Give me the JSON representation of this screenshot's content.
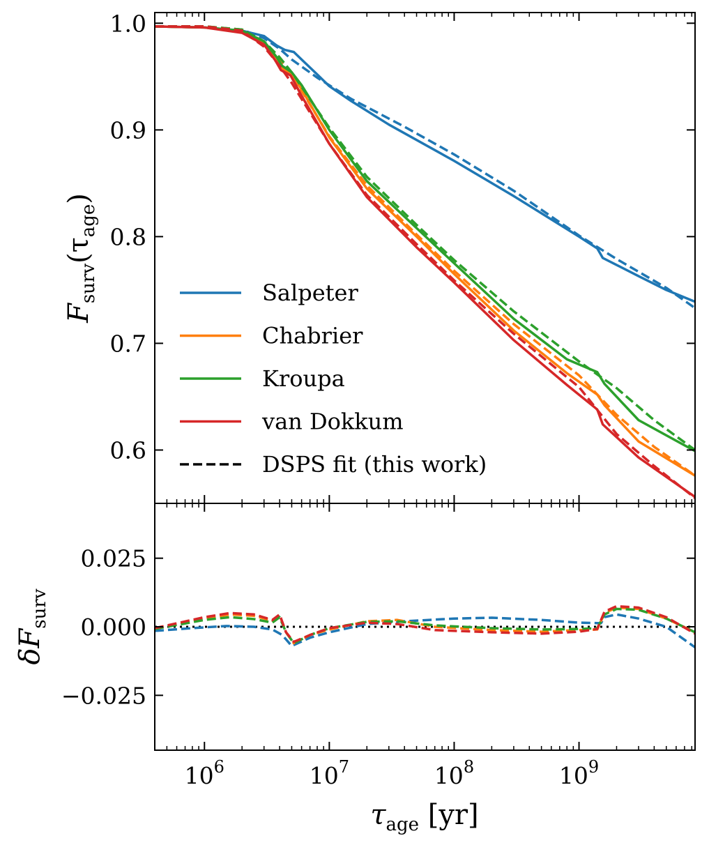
{
  "colors": {
    "Salpeter": "#1f77b4",
    "Chabrier": "#ff7f0e",
    "Kroupa": "#2ca02c",
    "van Dokkum": "#d62728",
    "fit": "#000000"
  },
  "chart_data": [
    {
      "type": "line",
      "panel": "top",
      "ylabel": "F_surv(τ_age)",
      "ylabel_main": "F",
      "ylabel_sub": "surv",
      "ylabel_arg": "(τ",
      "ylabel_arg_sub": "age",
      "ylabel_close": ")",
      "x_scale": "log",
      "xlim": [
        400000,
        8500000000
      ],
      "ylim": [
        0.55,
        1.01
      ],
      "y_ticks": [
        0.6,
        0.7,
        0.8,
        0.9,
        1.0
      ],
      "y_tick_labels": [
        "0.6",
        "0.7",
        "0.8",
        "0.9",
        "1.0"
      ],
      "legend_position": "lower-left",
      "legend": [
        {
          "label": "Salpeter",
          "style": "solid",
          "color_key": "Salpeter"
        },
        {
          "label": "Chabrier",
          "style": "solid",
          "color_key": "Chabrier"
        },
        {
          "label": "Kroupa",
          "style": "solid",
          "color_key": "Kroupa"
        },
        {
          "label": "van Dokkum",
          "style": "solid",
          "color_key": "van Dokkum"
        },
        {
          "label": "DSPS fit (this work)",
          "style": "dashed",
          "color_key": "fit"
        }
      ],
      "series": [
        {
          "name": "Salpeter",
          "style": "solid",
          "points": [
            [
              400000,
              0.997
            ],
            [
              1000000,
              0.996
            ],
            [
              2000000,
              0.993
            ],
            [
              3000000,
              0.988
            ],
            [
              3800000,
              0.979
            ],
            [
              4400000,
              0.975
            ],
            [
              5200000,
              0.973
            ],
            [
              6000000,
              0.966
            ],
            [
              8000000,
              0.952
            ],
            [
              10000000,
              0.941
            ],
            [
              15000000,
              0.927
            ],
            [
              30000000,
              0.905
            ],
            [
              100000000,
              0.871
            ],
            [
              300000000,
              0.838
            ],
            [
              1000000000,
              0.8
            ],
            [
              1400000000,
              0.789
            ],
            [
              1550000000,
              0.78
            ],
            [
              3000000000,
              0.763
            ],
            [
              5000000000,
              0.75
            ],
            [
              8500000000,
              0.739
            ]
          ]
        },
        {
          "name": "Salpeter",
          "style": "dashed",
          "points": [
            [
              400000,
              0.997
            ],
            [
              1000000,
              0.997
            ],
            [
              2000000,
              0.994
            ],
            [
              3000000,
              0.986
            ],
            [
              4000000,
              0.976
            ],
            [
              5000000,
              0.966
            ],
            [
              8000000,
              0.949
            ],
            [
              15000000,
              0.929
            ],
            [
              40000000,
              0.903
            ],
            [
              100000000,
              0.877
            ],
            [
              300000000,
              0.843
            ],
            [
              1000000000,
              0.801
            ],
            [
              2000000000,
              0.779
            ],
            [
              5000000000,
              0.752
            ],
            [
              8500000000,
              0.733
            ]
          ]
        },
        {
          "name": "Chabrier",
          "style": "solid",
          "points": [
            [
              400000,
              0.997
            ],
            [
              1000000,
              0.996
            ],
            [
              2000000,
              0.992
            ],
            [
              3000000,
              0.982
            ],
            [
              3800000,
              0.967
            ],
            [
              4200000,
              0.958
            ],
            [
              5000000,
              0.952
            ],
            [
              6000000,
              0.938
            ],
            [
              10000000,
              0.893
            ],
            [
              20000000,
              0.845
            ],
            [
              50000000,
              0.8
            ],
            [
              100000000,
              0.765
            ],
            [
              300000000,
              0.712
            ],
            [
              800000000,
              0.672
            ],
            [
              1400000000,
              0.652
            ],
            [
              1600000000,
              0.642
            ],
            [
              3000000000,
              0.608
            ],
            [
              8500000000,
              0.576
            ]
          ]
        },
        {
          "name": "Chabrier",
          "style": "dashed",
          "points": [
            [
              400000,
              0.997
            ],
            [
              1000000,
              0.997
            ],
            [
              2000000,
              0.994
            ],
            [
              3000000,
              0.982
            ],
            [
              4000000,
              0.966
            ],
            [
              5000000,
              0.952
            ],
            [
              10000000,
              0.894
            ],
            [
              20000000,
              0.848
            ],
            [
              50000000,
              0.802
            ],
            [
              100000000,
              0.768
            ],
            [
              300000000,
              0.718
            ],
            [
              1000000000,
              0.67
            ],
            [
              2000000000,
              0.633
            ],
            [
              4000000000,
              0.603
            ],
            [
              8500000000,
              0.576
            ]
          ]
        },
        {
          "name": "Kroupa",
          "style": "solid",
          "points": [
            [
              400000,
              0.997
            ],
            [
              1000000,
              0.996
            ],
            [
              2000000,
              0.993
            ],
            [
              3000000,
              0.983
            ],
            [
              3800000,
              0.968
            ],
            [
              4200000,
              0.96
            ],
            [
              5000000,
              0.954
            ],
            [
              6000000,
              0.942
            ],
            [
              10000000,
              0.9
            ],
            [
              20000000,
              0.852
            ],
            [
              50000000,
              0.808
            ],
            [
              100000000,
              0.775
            ],
            [
              300000000,
              0.723
            ],
            [
              800000000,
              0.685
            ],
            [
              1400000000,
              0.673
            ],
            [
              1600000000,
              0.662
            ],
            [
              3000000000,
              0.628
            ],
            [
              8500000000,
              0.599
            ]
          ]
        },
        {
          "name": "Kroupa",
          "style": "dashed",
          "points": [
            [
              400000,
              0.997
            ],
            [
              1000000,
              0.997
            ],
            [
              2000000,
              0.994
            ],
            [
              3000000,
              0.983
            ],
            [
              4000000,
              0.968
            ],
            [
              5000000,
              0.954
            ],
            [
              10000000,
              0.902
            ],
            [
              20000000,
              0.856
            ],
            [
              50000000,
              0.811
            ],
            [
              100000000,
              0.778
            ],
            [
              300000000,
              0.73
            ],
            [
              1000000000,
              0.683
            ],
            [
              2000000000,
              0.658
            ],
            [
              4000000000,
              0.628
            ],
            [
              8500000000,
              0.6
            ]
          ]
        },
        {
          "name": "van Dokkum",
          "style": "solid",
          "points": [
            [
              400000,
              0.997
            ],
            [
              1000000,
              0.996
            ],
            [
              2000000,
              0.991
            ],
            [
              3000000,
              0.98
            ],
            [
              3700000,
              0.965
            ],
            [
              4100000,
              0.956
            ],
            [
              4900000,
              0.951
            ],
            [
              6000000,
              0.932
            ],
            [
              10000000,
              0.887
            ],
            [
              20000000,
              0.837
            ],
            [
              50000000,
              0.79
            ],
            [
              100000000,
              0.757
            ],
            [
              300000000,
              0.703
            ],
            [
              800000000,
              0.661
            ],
            [
              1400000000,
              0.638
            ],
            [
              1550000000,
              0.624
            ],
            [
              3000000000,
              0.593
            ],
            [
              8500000000,
              0.556
            ]
          ]
        },
        {
          "name": "van Dokkum",
          "style": "dashed",
          "points": [
            [
              400000,
              0.997
            ],
            [
              1000000,
              0.997
            ],
            [
              2000000,
              0.993
            ],
            [
              3000000,
              0.978
            ],
            [
              4000000,
              0.96
            ],
            [
              5000000,
              0.944
            ],
            [
              10000000,
              0.887
            ],
            [
              20000000,
              0.839
            ],
            [
              50000000,
              0.793
            ],
            [
              100000000,
              0.759
            ],
            [
              300000000,
              0.709
            ],
            [
              1000000000,
              0.659
            ],
            [
              2000000000,
              0.615
            ],
            [
              4000000000,
              0.585
            ],
            [
              8500000000,
              0.555
            ]
          ]
        }
      ]
    },
    {
      "type": "line",
      "panel": "bottom",
      "ylabel": "δF_surv",
      "ylabel_main": "δF",
      "ylabel_sub": "surv",
      "xlabel": "τ_age [yr]",
      "xlabel_main": "τ",
      "xlabel_sub": "age",
      "xlabel_unit": " [yr]",
      "x_scale": "log",
      "xlim": [
        400000,
        8500000000
      ],
      "ylim": [
        -0.045,
        0.045
      ],
      "y_ticks": [
        -0.025,
        0.0,
        0.025
      ],
      "y_tick_labels": [
        "−0.025",
        "0.000",
        "0.025"
      ],
      "x_ticks": [
        1000000,
        10000000,
        100000000,
        1000000000
      ],
      "x_tick_base": "10",
      "x_tick_exponents": [
        "6",
        "7",
        "8",
        "9"
      ],
      "reference_line": {
        "y": 0.0,
        "style": "dotted",
        "color": "#000000"
      },
      "series": [
        {
          "name": "Salpeter",
          "style": "dashed",
          "points": [
            [
              400000,
              -0.0015
            ],
            [
              800000,
              -0.0005
            ],
            [
              1500000,
              0.0003
            ],
            [
              2500000,
              0.0
            ],
            [
              3500000,
              -0.001
            ],
            [
              4200000,
              -0.003
            ],
            [
              5000000,
              -0.007
            ],
            [
              7000000,
              -0.004
            ],
            [
              10000000,
              -0.002
            ],
            [
              20000000,
              0.001
            ],
            [
              40000000,
              0.002
            ],
            [
              100000000,
              0.003
            ],
            [
              200000000,
              0.0033
            ],
            [
              500000000,
              0.0025
            ],
            [
              1000000000,
              0.0015
            ],
            [
              1500000000,
              0.0013
            ],
            [
              1600000000,
              0.0035
            ],
            [
              2000000000,
              0.0045
            ],
            [
              3000000000,
              0.003
            ],
            [
              5000000000,
              0.0
            ],
            [
              8500000000,
              -0.0075
            ]
          ]
        },
        {
          "name": "Chabrier",
          "style": "dashed",
          "points": [
            [
              400000,
              -0.0008
            ],
            [
              1000000,
              0.003
            ],
            [
              1600000,
              0.0045
            ],
            [
              2500000,
              0.004
            ],
            [
              3500000,
              0.0022
            ],
            [
              4000000,
              0.0042
            ],
            [
              4500000,
              -0.002
            ],
            [
              5200000,
              -0.006
            ],
            [
              7000000,
              -0.003
            ],
            [
              10000000,
              -0.001
            ],
            [
              20000000,
              0.002
            ],
            [
              35000000,
              0.0025
            ],
            [
              70000000,
              0.0
            ],
            [
              200000000,
              -0.0012
            ],
            [
              500000000,
              -0.0018
            ],
            [
              1000000000,
              -0.0012
            ],
            [
              1400000000,
              -0.001
            ],
            [
              1600000000,
              0.005
            ],
            [
              2000000000,
              0.007
            ],
            [
              3000000000,
              0.0065
            ],
            [
              5000000000,
              0.003
            ],
            [
              8500000000,
              -0.002
            ]
          ]
        },
        {
          "name": "Kroupa",
          "style": "dashed",
          "points": [
            [
              400000,
              -0.0008
            ],
            [
              1000000,
              0.0025
            ],
            [
              1600000,
              0.0035
            ],
            [
              2500000,
              0.0028
            ],
            [
              3500000,
              0.0015
            ],
            [
              4000000,
              0.0035
            ],
            [
              4500000,
              -0.002
            ],
            [
              5200000,
              -0.006
            ],
            [
              7000000,
              -0.003
            ],
            [
              10000000,
              -0.0005
            ],
            [
              20000000,
              0.0018
            ],
            [
              35000000,
              0.002
            ],
            [
              70000000,
              0.0005
            ],
            [
              200000000,
              -0.0005
            ],
            [
              500000000,
              -0.001
            ],
            [
              1000000000,
              -0.0008
            ],
            [
              1400000000,
              -0.0005
            ],
            [
              1600000000,
              0.0045
            ],
            [
              2000000000,
              0.0065
            ],
            [
              3000000000,
              0.0062
            ],
            [
              5000000000,
              0.003
            ],
            [
              8500000000,
              -0.002
            ]
          ]
        },
        {
          "name": "van Dokkum",
          "style": "dashed",
          "points": [
            [
              400000,
              -0.0005
            ],
            [
              1000000,
              0.0035
            ],
            [
              1600000,
              0.005
            ],
            [
              2500000,
              0.0045
            ],
            [
              3500000,
              0.0025
            ],
            [
              4000000,
              0.0045
            ],
            [
              4500000,
              -0.002
            ],
            [
              5200000,
              -0.0055
            ],
            [
              7000000,
              -0.003
            ],
            [
              10000000,
              -0.0005
            ],
            [
              20000000,
              0.0015
            ],
            [
              35000000,
              0.001
            ],
            [
              70000000,
              -0.0012
            ],
            [
              200000000,
              -0.002
            ],
            [
              500000000,
              -0.0025
            ],
            [
              1000000000,
              -0.0018
            ],
            [
              1400000000,
              -0.0008
            ],
            [
              1600000000,
              0.0055
            ],
            [
              2000000000,
              0.0075
            ],
            [
              3000000000,
              0.007
            ],
            [
              5000000000,
              0.0035
            ],
            [
              8500000000,
              -0.0025
            ]
          ]
        }
      ]
    }
  ]
}
